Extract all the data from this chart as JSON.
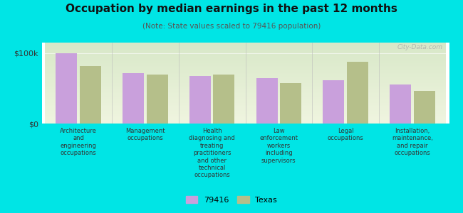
{
  "title": "Occupation by median earnings in the past 12 months",
  "subtitle": "(Note: State values scaled to 79416 population)",
  "background_color": "#00e5e5",
  "plot_bg_top": "#d8e8c8",
  "plot_bg_bottom": "#f0f5e0",
  "categories": [
    "Architecture\nand\nengineering\noccupations",
    "Management\noccupations",
    "Health\ndiagnosing and\ntreating\npractitioners\nand other\ntechnical\noccupations",
    "Law\nenforcement\nworkers\nincluding\nsupervisors",
    "Legal\noccupations",
    "Installation,\nmaintenance,\nand repair\noccupations"
  ],
  "values_79416": [
    100000,
    72000,
    68000,
    65000,
    62000,
    55000
  ],
  "values_texas": [
    82000,
    70000,
    70000,
    58000,
    88000,
    46000
  ],
  "color_79416": "#c9a0dc",
  "color_texas": "#b5bf8a",
  "ylim": [
    0,
    115000
  ],
  "ytick_vals": [
    0,
    100000
  ],
  "ytick_labels": [
    "$0",
    "$100k"
  ],
  "legend_labels": [
    "79416",
    "Texas"
  ],
  "watermark": "City-Data.com"
}
